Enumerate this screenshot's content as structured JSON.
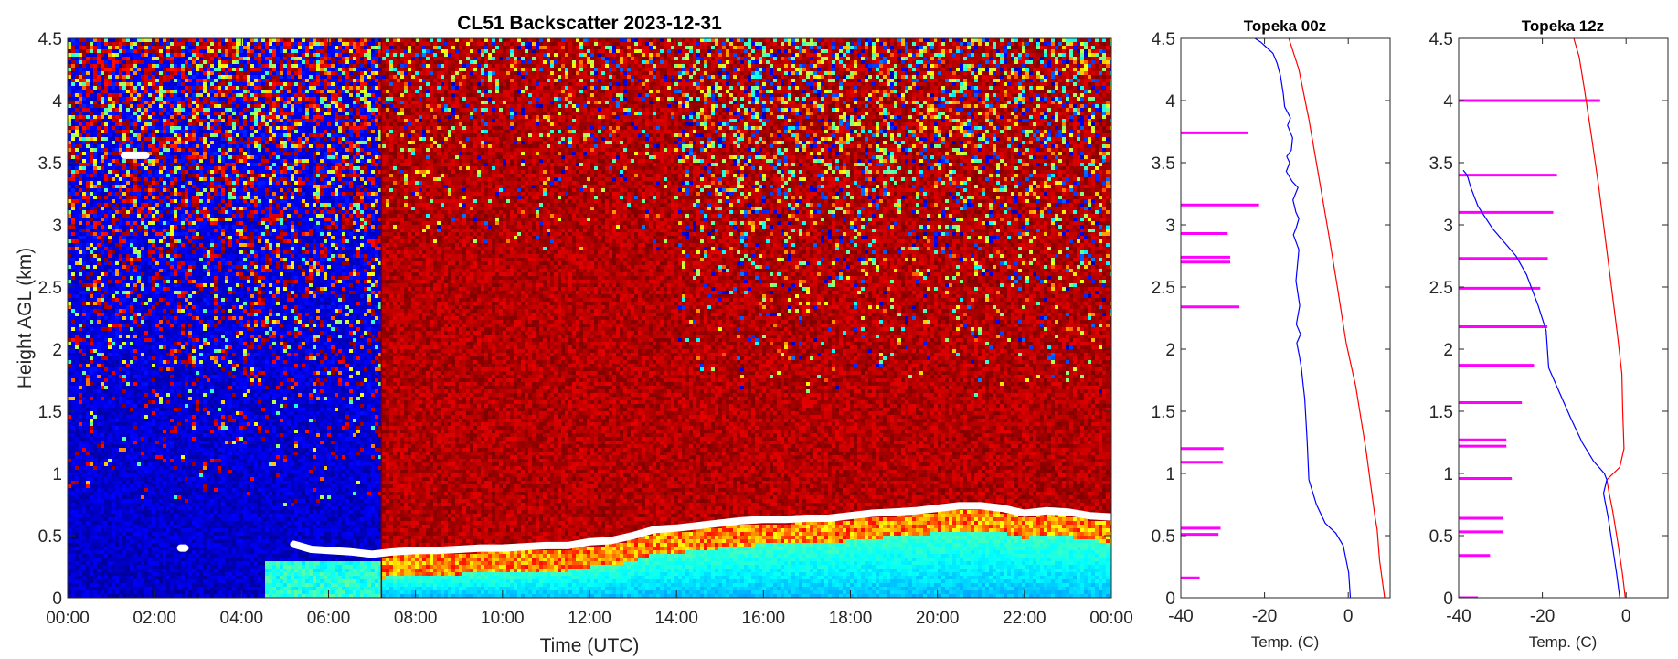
{
  "chart_data": [
    {
      "type": "heatmap",
      "title": "CL51 Backscatter 2023-12-31",
      "xlabel": "Time (UTC)",
      "ylabel": "Height AGL (km)",
      "xlim": [
        0,
        24
      ],
      "ylim": [
        0,
        4.5
      ],
      "x_tick_labels": [
        "00:00",
        "02:00",
        "04:00",
        "06:00",
        "08:00",
        "10:00",
        "12:00",
        "14:00",
        "16:00",
        "18:00",
        "20:00",
        "22:00",
        "00:00"
      ],
      "y_tick_labels": [
        "0",
        "0.5",
        "1",
        "1.5",
        "2",
        "2.5",
        "3",
        "3.5",
        "4",
        "4.5"
      ],
      "colormap": "jet",
      "data_end_hour": 24,
      "regions": [
        {
          "x": [
            0,
            7.2
          ],
          "y": [
            0,
            4.5
          ],
          "level": "low"
        },
        {
          "x": [
            7.2,
            24
          ],
          "y": [
            0,
            4.5
          ],
          "level": "high"
        }
      ],
      "mixing_layer_height": {
        "color": "#ffffff",
        "x": [
          5.2,
          5.6,
          6.0,
          6.5,
          7.0,
          7.5,
          8.0,
          8.5,
          9.0,
          9.5,
          10.0,
          10.5,
          11.0,
          11.5,
          12.0,
          12.5,
          13.0,
          13.5,
          14.0,
          14.5,
          15.0,
          15.5,
          16.0,
          16.5,
          17.0,
          17.5,
          18.0,
          18.5,
          19.0,
          19.5,
          20.0,
          20.5,
          21.0,
          21.5,
          22.0,
          22.5,
          23.0,
          23.5,
          24.0
        ],
        "y": [
          0.43,
          0.39,
          0.38,
          0.37,
          0.35,
          0.37,
          0.38,
          0.38,
          0.39,
          0.4,
          0.4,
          0.41,
          0.42,
          0.42,
          0.45,
          0.46,
          0.5,
          0.55,
          0.56,
          0.58,
          0.6,
          0.62,
          0.63,
          0.63,
          0.64,
          0.64,
          0.66,
          0.68,
          0.69,
          0.7,
          0.72,
          0.74,
          0.74,
          0.72,
          0.68,
          0.7,
          0.69,
          0.66,
          0.65
        ]
      },
      "isolated_points": [
        {
          "x": [
            1.3,
            1.8
          ],
          "y": 3.56
        },
        {
          "x": [
            2.6,
            2.7
          ],
          "y": 0.4
        }
      ]
    },
    {
      "type": "line",
      "title": "Topeka 00z",
      "xlabel": "Temp. (C)",
      "xlim": [
        -40,
        10
      ],
      "ylim": [
        0,
        4.5
      ],
      "x_tick_labels": [
        "-40",
        "-20",
        "0"
      ],
      "y_tick_labels": [
        "0",
        "0.5",
        "1",
        "1.5",
        "2",
        "2.5",
        "3",
        "3.5",
        "4",
        "4.5"
      ],
      "series": [
        {
          "color": "#ff0000",
          "x": [
            8.7,
            7.5,
            6.9,
            6.4,
            4.2,
            1.8,
            -0.5,
            -2.6,
            -4.8,
            -7.1,
            -9.4,
            -11.8,
            -14.2
          ],
          "y": [
            0,
            0.3,
            0.55,
            0.65,
            1.2,
            1.7,
            2.05,
            2.5,
            2.95,
            3.4,
            3.85,
            4.25,
            4.5
          ]
        },
        {
          "color": "#0000ff",
          "x": [
            0.5,
            0.1,
            -1.2,
            -3.0,
            -5.5,
            -7.6,
            -9.4,
            -9.8,
            -10.4,
            -10.9,
            -11.2,
            -11.7,
            -12.3,
            -11.4,
            -12.4,
            -11.6,
            -12.5,
            -11.8,
            -13.1,
            -12.4,
            -11.8,
            -12.5,
            -13.2,
            -12.0,
            -13.4,
            -14.8,
            -14.0,
            -14.7,
            -13.6,
            -13.3,
            -14.5,
            -13.8,
            -15.2,
            -15.5,
            -16.2,
            -17.0,
            -18.0,
            -19.6,
            -20.9,
            -22.3
          ],
          "y": [
            0,
            0.2,
            0.42,
            0.52,
            0.6,
            0.75,
            0.95,
            1.25,
            1.6,
            1.75,
            1.85,
            1.95,
            2.05,
            2.12,
            2.2,
            2.35,
            2.55,
            2.8,
            2.92,
            2.98,
            3.05,
            3.1,
            3.2,
            3.3,
            3.35,
            3.43,
            3.5,
            3.55,
            3.6,
            3.7,
            3.8,
            3.86,
            3.95,
            4.05,
            4.2,
            4.3,
            4.38,
            4.43,
            4.47,
            4.5
          ]
        }
      ],
      "bars": {
        "color": "#ff00ff",
        "y": [
          0.16,
          0.51,
          0.56,
          1.09,
          1.2,
          2.34,
          2.7,
          2.74,
          2.93,
          3.16,
          3.74
        ],
        "x_end": [
          -35.5,
          -31.0,
          -30.5,
          -30.0,
          -29.8,
          -26.0,
          -28.2,
          -28.2,
          -28.8,
          -21.3,
          -23.9
        ]
      }
    },
    {
      "type": "line",
      "title": "Topeka 12z",
      "xlabel": "Temp. (C)",
      "xlim": [
        -40,
        10
      ],
      "ylim": [
        0,
        4.5
      ],
      "x_tick_labels": [
        "-40",
        "-20",
        "0"
      ],
      "y_tick_labels": [
        "0",
        "0.5",
        "1",
        "1.5",
        "2",
        "2.5",
        "3",
        "3.5",
        "4",
        "4.5"
      ],
      "series": [
        {
          "color": "#ff0000",
          "x": [
            -0.2,
            -0.9,
            -2.0,
            -3.2,
            -4.1,
            -4.6,
            -1.5,
            -0.5,
            -0.8,
            -1.0,
            -2.0,
            -3.5,
            -5.0,
            -6.5,
            -8.2,
            -10.0,
            -11.2,
            -12.5
          ],
          "y": [
            0,
            0.2,
            0.45,
            0.7,
            0.85,
            0.95,
            1.05,
            1.2,
            1.5,
            1.8,
            2.1,
            2.5,
            2.9,
            3.3,
            3.7,
            4.1,
            4.35,
            4.5
          ]
        },
        {
          "color": "#0000ff",
          "x": [
            -1.5,
            -2.3,
            -3.4,
            -4.3,
            -5.4,
            -4.6,
            -5.2,
            -7.8,
            -10.5,
            -13.3,
            -15.9,
            -18.5,
            -19.1,
            -21.0,
            -23.8,
            -26.3,
            -31.9,
            -35.4,
            -37.1,
            -37.8,
            -38.2,
            -38.9
          ],
          "y": [
            0,
            0.2,
            0.45,
            0.65,
            0.84,
            0.95,
            1.0,
            1.1,
            1.25,
            1.45,
            1.65,
            1.85,
            2.15,
            2.35,
            2.6,
            2.75,
            2.97,
            3.15,
            3.3,
            3.38,
            3.41,
            3.44
          ]
        }
      ],
      "bars": {
        "color": "#ff00ff",
        "y": [
          0.0,
          0.34,
          0.53,
          0.64,
          0.96,
          1.22,
          1.27,
          1.57,
          1.87,
          2.18,
          2.49,
          2.73,
          3.1,
          3.4,
          4.0
        ],
        "x_end": [
          -35.4,
          -32.5,
          -29.5,
          -29.3,
          -27.3,
          -28.6,
          -28.6,
          -24.9,
          -22.0,
          -18.8,
          -20.5,
          -18.7,
          -17.4,
          -16.5,
          -6.2
        ]
      }
    }
  ]
}
